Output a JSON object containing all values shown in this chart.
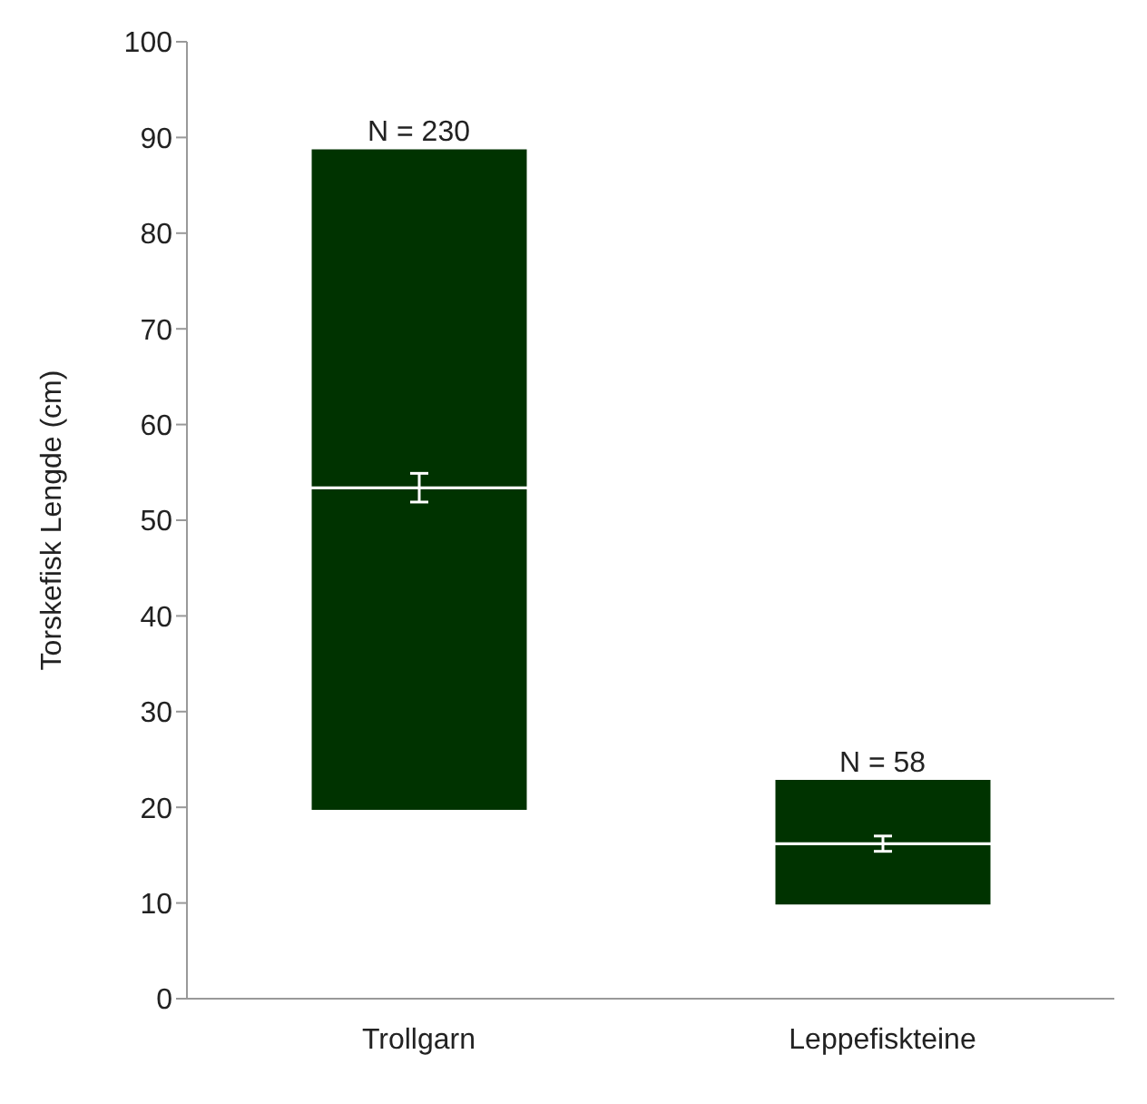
{
  "chart_data": {
    "type": "bar",
    "ylabel": "Torskefisk Lengde  (cm)",
    "categories": [
      "Trollgarn",
      "Leppefiskteine"
    ],
    "stacked": true,
    "series": [
      {
        "color": "#003300",
        "values": [
          33.8,
          6.5
        ],
        "base": [
          19.6,
          9.7
        ],
        "errors": [
          1.5,
          0.8
        ]
      },
      {
        "color": "#003300",
        "values": [
          35.5,
          6.8
        ]
      }
    ],
    "ylim": [
      0,
      100
    ],
    "yticks": [
      0,
      10,
      20,
      30,
      40,
      50,
      60,
      70,
      80,
      90,
      100
    ],
    "annotations": [
      {
        "text": "N = 230",
        "x": "Trollgarn",
        "y": 88.9
      },
      {
        "text": "N = 58",
        "x": "Leppefiskteine",
        "y": 23.0
      }
    ]
  }
}
